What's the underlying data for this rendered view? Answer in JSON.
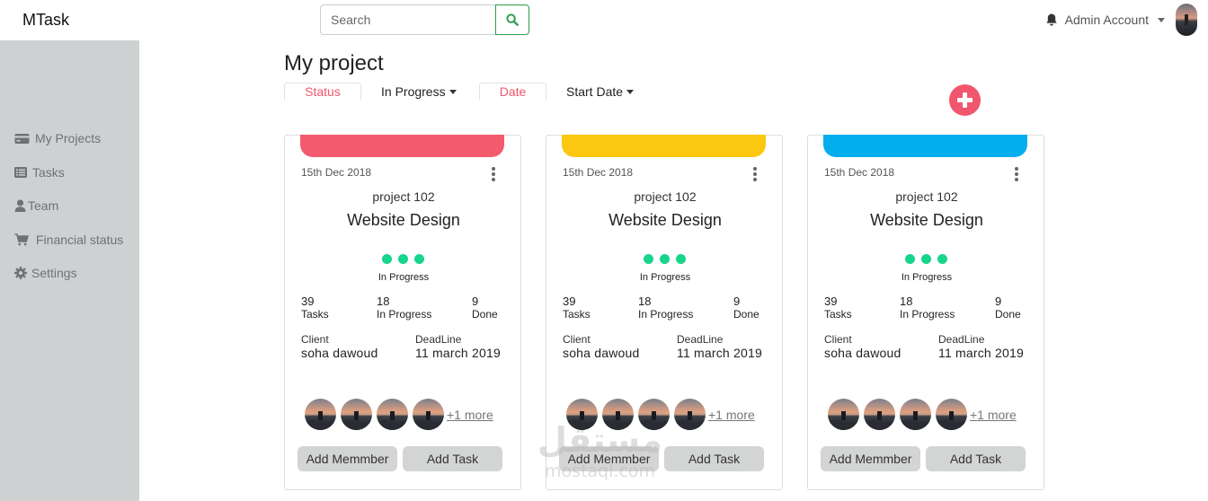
{
  "navbar": {
    "brand": "MTask",
    "search_placeholder": "Search",
    "account_name": "Admin Account"
  },
  "sidebar": {
    "items": [
      {
        "label": "My Projects",
        "icon": "credit-card-icon"
      },
      {
        "label": "Tasks",
        "icon": "list-icon"
      },
      {
        "label": "Team",
        "icon": "user-icon"
      },
      {
        "label": "Financial status",
        "icon": "cart-icon"
      },
      {
        "label": "Settings",
        "icon": "gear-icon"
      }
    ]
  },
  "main": {
    "title": "My project",
    "filters": {
      "status_tab": "Status",
      "status_value": "In Progress",
      "date_tab": "Date",
      "date_value": "Start Date"
    }
  },
  "cards": [
    {
      "accent": "#f45a6e",
      "date": "15th Dec 2018",
      "project": "project 102",
      "name": "Website Design",
      "status": "In Progress",
      "stats": [
        {
          "num": "39",
          "label": "Tasks"
        },
        {
          "num": "18",
          "label": "In Progress"
        },
        {
          "num": "9",
          "label": "Done"
        }
      ],
      "client_label": "Client",
      "client": "soha dawoud",
      "deadline_label": "DeadLine",
      "deadline": "11 march 2019",
      "more": "+1 more",
      "add_member": "Add Memmber",
      "add_task": "Add Task"
    },
    {
      "accent": "#fcc711",
      "date": "15th Dec 2018",
      "project": "project 102",
      "name": "Website Design",
      "status": "In Progress",
      "stats": [
        {
          "num": "39",
          "label": "Tasks"
        },
        {
          "num": "18",
          "label": "In Progress"
        },
        {
          "num": "9",
          "label": "Done"
        }
      ],
      "client_label": "Client",
      "client": "soha dawoud",
      "deadline_label": "DeadLine",
      "deadline": "11 march 2019",
      "more": "+1 more",
      "add_member": "Add Memmber",
      "add_task": "Add Task"
    },
    {
      "accent": "#03aeee",
      "date": "15th Dec 2018",
      "project": "project 102",
      "name": "Website Design",
      "status": "In Progress",
      "stats": [
        {
          "num": "39",
          "label": "Tasks"
        },
        {
          "num": "18",
          "label": "In Progress"
        },
        {
          "num": "9",
          "label": "Done"
        }
      ],
      "client_label": "Client",
      "client": "soha dawoud",
      "deadline_label": "DeadLine",
      "deadline": "11 march 2019",
      "more": "+1 more",
      "add_member": "Add Memmber",
      "add_task": "Add Task"
    }
  ],
  "watermark": {
    "arabic": "مستقل",
    "latin": "mostaql.com"
  },
  "colors": {
    "accent_pink": "#f0566e",
    "success_green": "#19d48b",
    "sidebar_bg": "#ced1d2"
  }
}
